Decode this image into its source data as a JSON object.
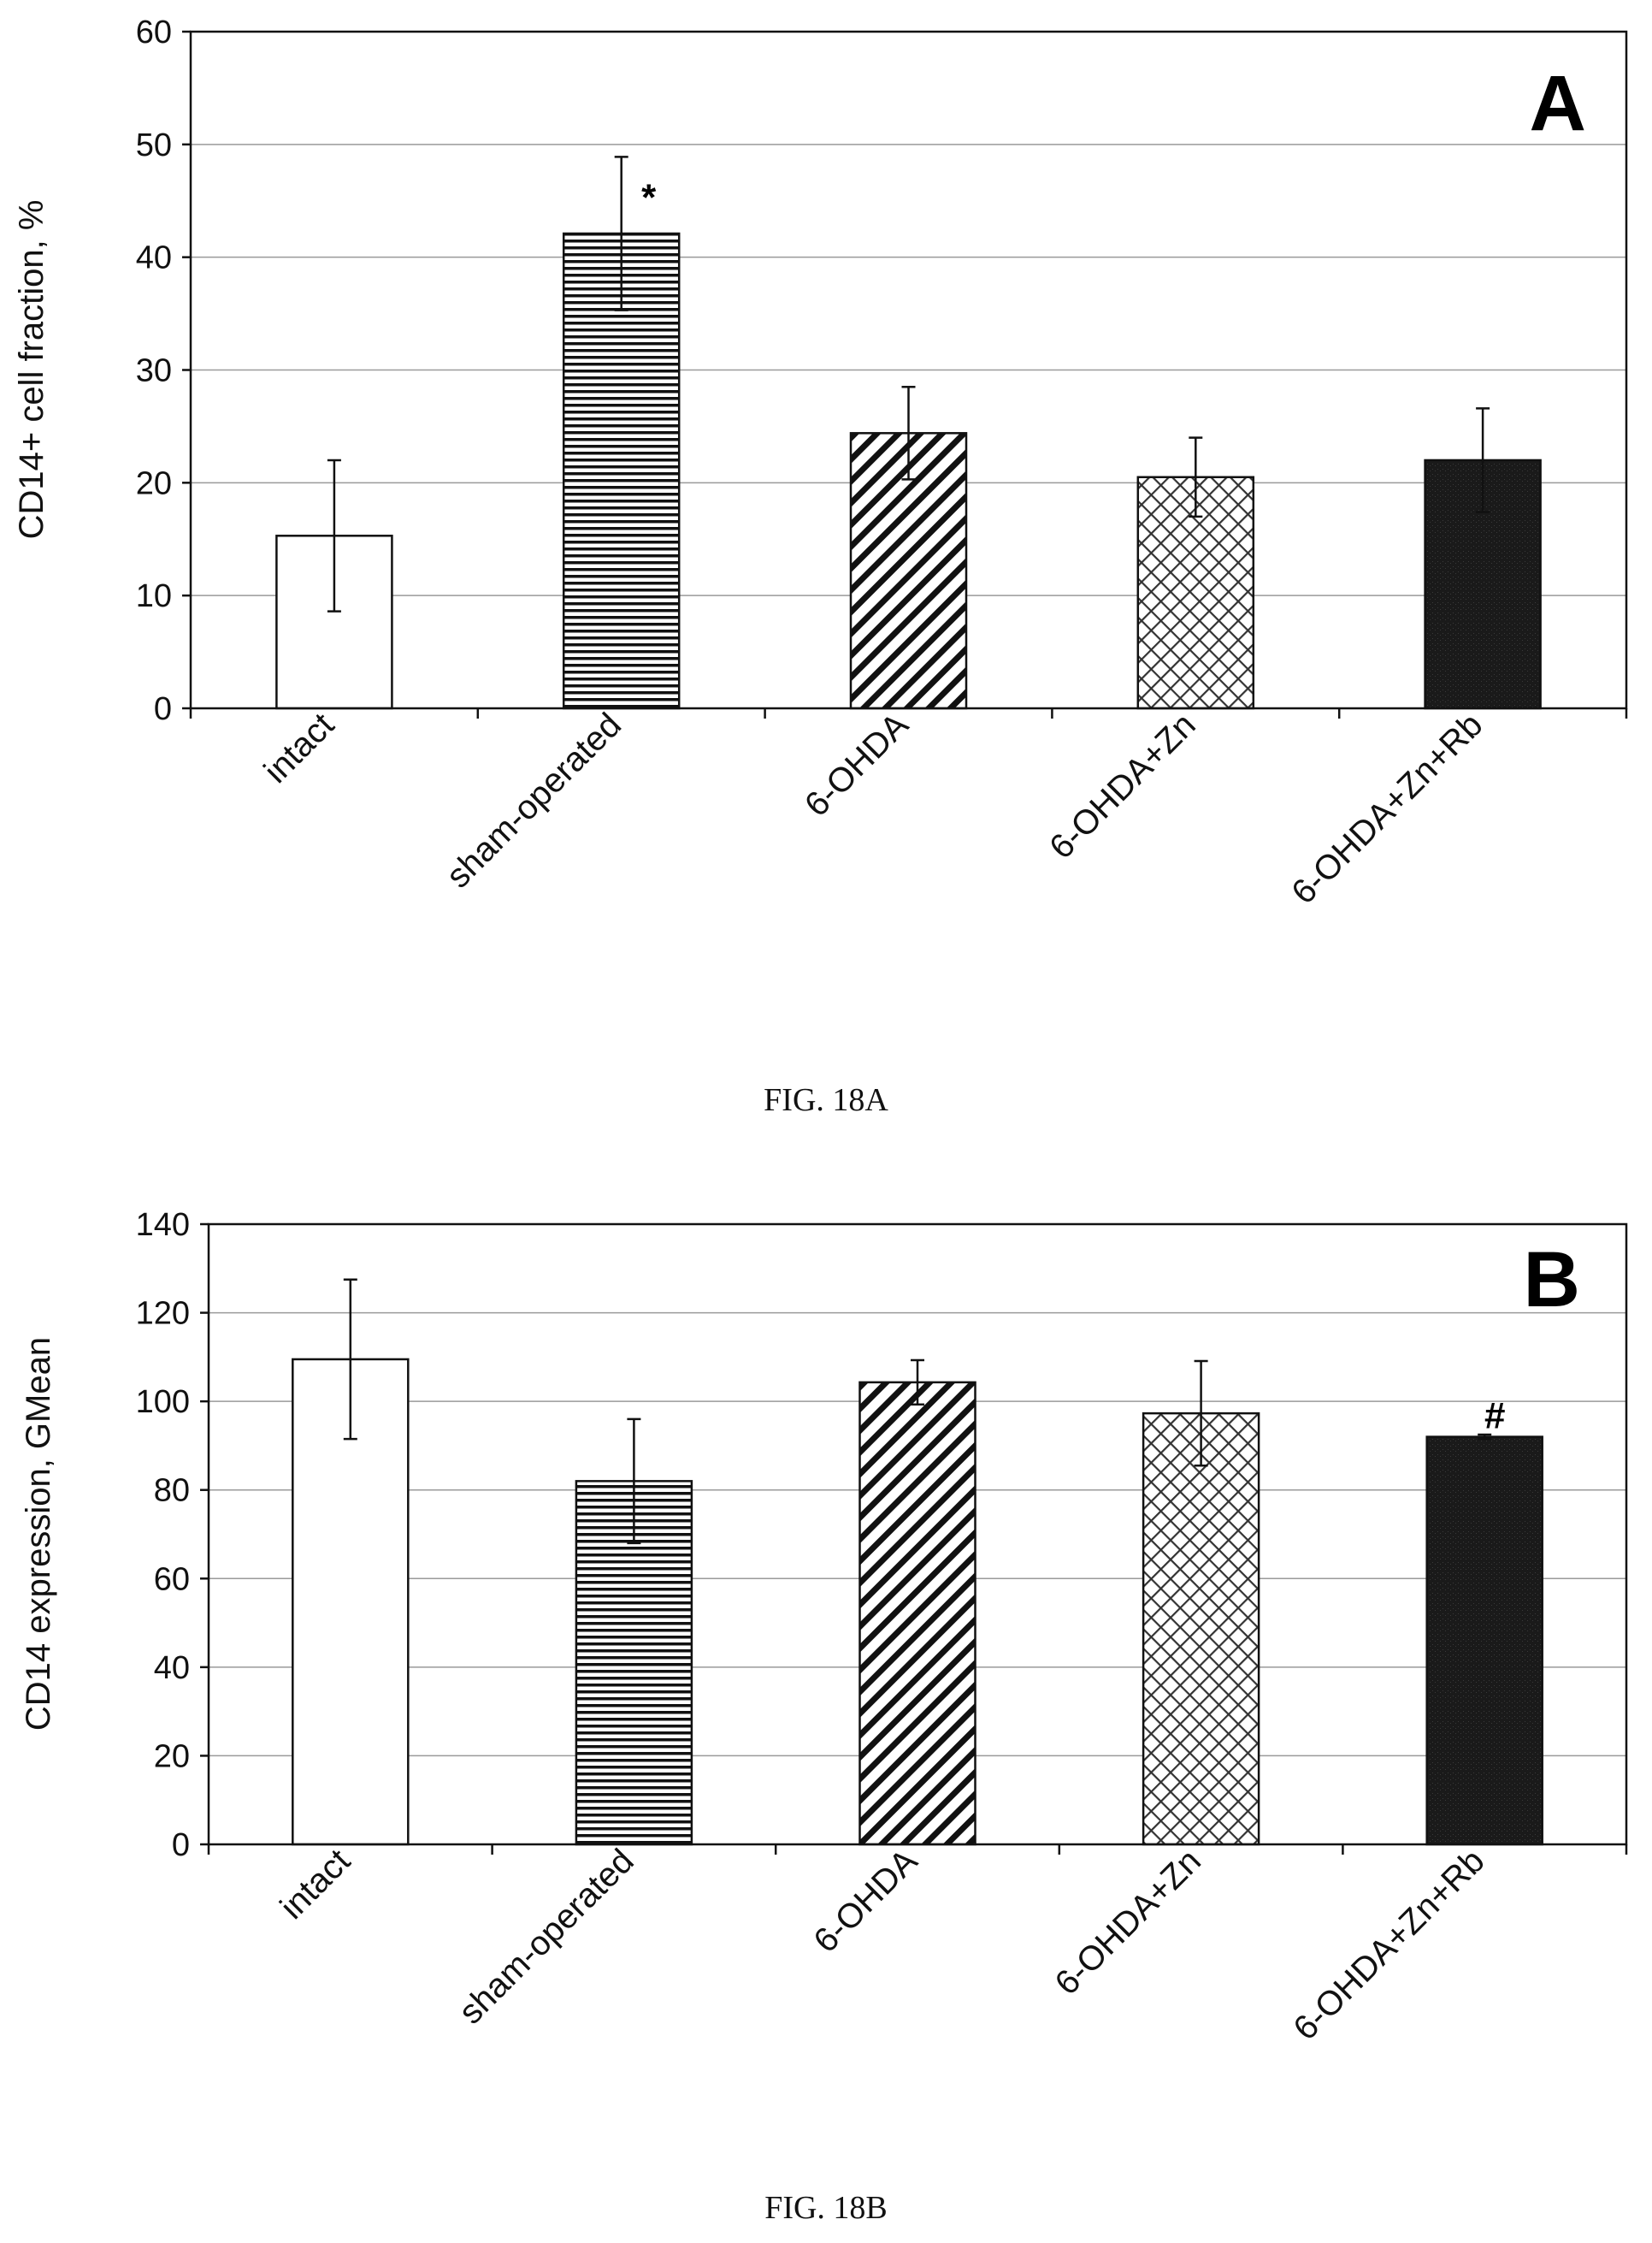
{
  "chart_data": [
    {
      "type": "bar",
      "panel_label": "A",
      "caption": "FIG. 18A",
      "ylabel": "CD14+ cell fraction, %",
      "xlabel": "",
      "ylim": [
        0,
        60
      ],
      "yticks": [
        0,
        10,
        20,
        30,
        40,
        50,
        60
      ],
      "grid": true,
      "categories": [
        "intact",
        "sham-operated",
        "6-OHDA",
        "6-OHDA+Zn",
        "6-OHDA+Zn+Rb"
      ],
      "values": [
        15.3,
        42.1,
        24.4,
        20.5,
        22.0
      ],
      "errors": [
        6.7,
        6.8,
        4.1,
        3.5,
        4.6
      ],
      "patterns": [
        "white",
        "horizontal",
        "diagonal",
        "crosshatch",
        "solid"
      ],
      "annotations": [
        {
          "category": "sham-operated",
          "text": "*"
        }
      ]
    },
    {
      "type": "bar",
      "panel_label": "B",
      "caption": "FIG. 18B",
      "ylabel": "CD14 expression, GMean",
      "xlabel": "",
      "ylim": [
        0,
        140
      ],
      "yticks": [
        0,
        20,
        40,
        60,
        80,
        100,
        120,
        140
      ],
      "grid": true,
      "categories": [
        "intact",
        "sham-operated",
        "6-OHDA",
        "6-OHDA+Zn",
        "6-OHDA+Zn+Rb"
      ],
      "values": [
        109.5,
        82.0,
        104.3,
        97.3,
        92.0
      ],
      "errors": [
        18.0,
        14.0,
        5.0,
        11.8,
        0.5
      ],
      "patterns": [
        "white",
        "horizontal",
        "diagonal",
        "crosshatch",
        "solid"
      ],
      "annotations": [
        {
          "category": "6-OHDA+Zn+Rb",
          "text": "#"
        }
      ]
    }
  ],
  "colors": {
    "ink": "#111111",
    "grid": "#9a9a9a",
    "solid_fill": "#1a1a1a",
    "white_fill": "#ffffff"
  }
}
